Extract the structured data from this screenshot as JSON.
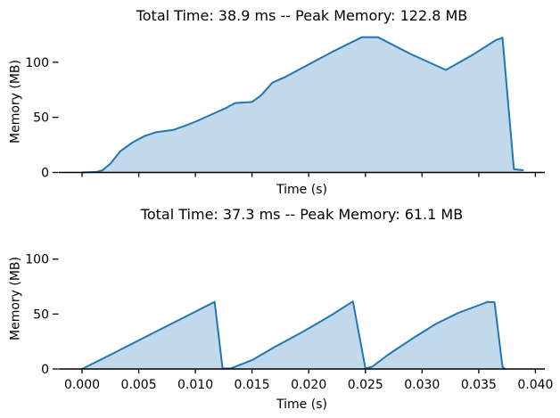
{
  "chart_data": [
    {
      "type": "area",
      "title": "Total Time: 38.9 ms -- Peak Memory: 122.8 MB",
      "xlabel": "Time (s)",
      "ylabel": "Memory (MB)",
      "total_time_ms": 38.9,
      "peak_memory_mb": 122.8,
      "xlim": [
        -0.002,
        0.041
      ],
      "ylim": [
        0,
        129
      ],
      "yticks": [
        0,
        50,
        100
      ],
      "xticks": [
        0.0,
        0.005,
        0.01,
        0.015,
        0.02,
        0.025,
        0.03,
        0.035,
        0.04
      ],
      "xtick_labels": null,
      "grid": false,
      "legend": false,
      "line_color": "#1f77b4",
      "fill_color": "rgba(31,119,180,0.28)",
      "axis_color": "#000000",
      "points": [
        [
          0.0,
          0
        ],
        [
          0.0013,
          0.5
        ],
        [
          0.0018,
          2
        ],
        [
          0.0025,
          8
        ],
        [
          0.0034,
          19.5
        ],
        [
          0.0045,
          27.5
        ],
        [
          0.0055,
          33
        ],
        [
          0.0065,
          36.5
        ],
        [
          0.008,
          38.5
        ],
        [
          0.009,
          42
        ],
        [
          0.0101,
          46.5
        ],
        [
          0.0115,
          53
        ],
        [
          0.0127,
          58.5
        ],
        [
          0.0135,
          63
        ],
        [
          0.015,
          64
        ],
        [
          0.0158,
          70
        ],
        [
          0.0168,
          81.5
        ],
        [
          0.018,
          87
        ],
        [
          0.02,
          98
        ],
        [
          0.022,
          109
        ],
        [
          0.0247,
          122.8
        ],
        [
          0.0261,
          122.8
        ],
        [
          0.029,
          107.5
        ],
        [
          0.0321,
          93
        ],
        [
          0.0345,
          107
        ],
        [
          0.0365,
          120
        ],
        [
          0.0371,
          122.3
        ],
        [
          0.0381,
          3
        ],
        [
          0.0389,
          2
        ]
      ]
    },
    {
      "type": "area",
      "title": "Total Time: 37.3 ms -- Peak Memory: 61.1 MB",
      "xlabel": "Time (s)",
      "ylabel": "Memory (MB)",
      "total_time_ms": 37.3,
      "peak_memory_mb": 61.1,
      "xlim": [
        -0.002,
        0.041
      ],
      "ylim": [
        0,
        129
      ],
      "yticks": [
        0,
        50,
        100
      ],
      "xticks": [
        0.0,
        0.005,
        0.01,
        0.015,
        0.02,
        0.025,
        0.03,
        0.035,
        0.04
      ],
      "xtick_labels": [
        "0.000",
        "0.005",
        "0.010",
        "0.015",
        "0.020",
        "0.025",
        "0.030",
        "0.035",
        "0.040"
      ],
      "grid": false,
      "legend": false,
      "line_color": "#1f77b4",
      "fill_color": "rgba(31,119,180,0.28)",
      "axis_color": "#000000",
      "points": [
        [
          0.0,
          0
        ],
        [
          0.003,
          15.5
        ],
        [
          0.006,
          31.3
        ],
        [
          0.009,
          47
        ],
        [
          0.0117,
          61.1
        ],
        [
          0.0124,
          0.5
        ],
        [
          0.0131,
          0.5
        ],
        [
          0.015,
          8
        ],
        [
          0.017,
          20
        ],
        [
          0.0195,
          34
        ],
        [
          0.022,
          49
        ],
        [
          0.0239,
          61.5
        ],
        [
          0.025,
          0.5
        ],
        [
          0.0256,
          2
        ],
        [
          0.027,
          13
        ],
        [
          0.0292,
          28
        ],
        [
          0.0312,
          41
        ],
        [
          0.0332,
          51
        ],
        [
          0.035,
          58
        ],
        [
          0.0358,
          61.1
        ],
        [
          0.0364,
          60.8
        ],
        [
          0.0371,
          2
        ],
        [
          0.0373,
          0
        ]
      ]
    }
  ]
}
